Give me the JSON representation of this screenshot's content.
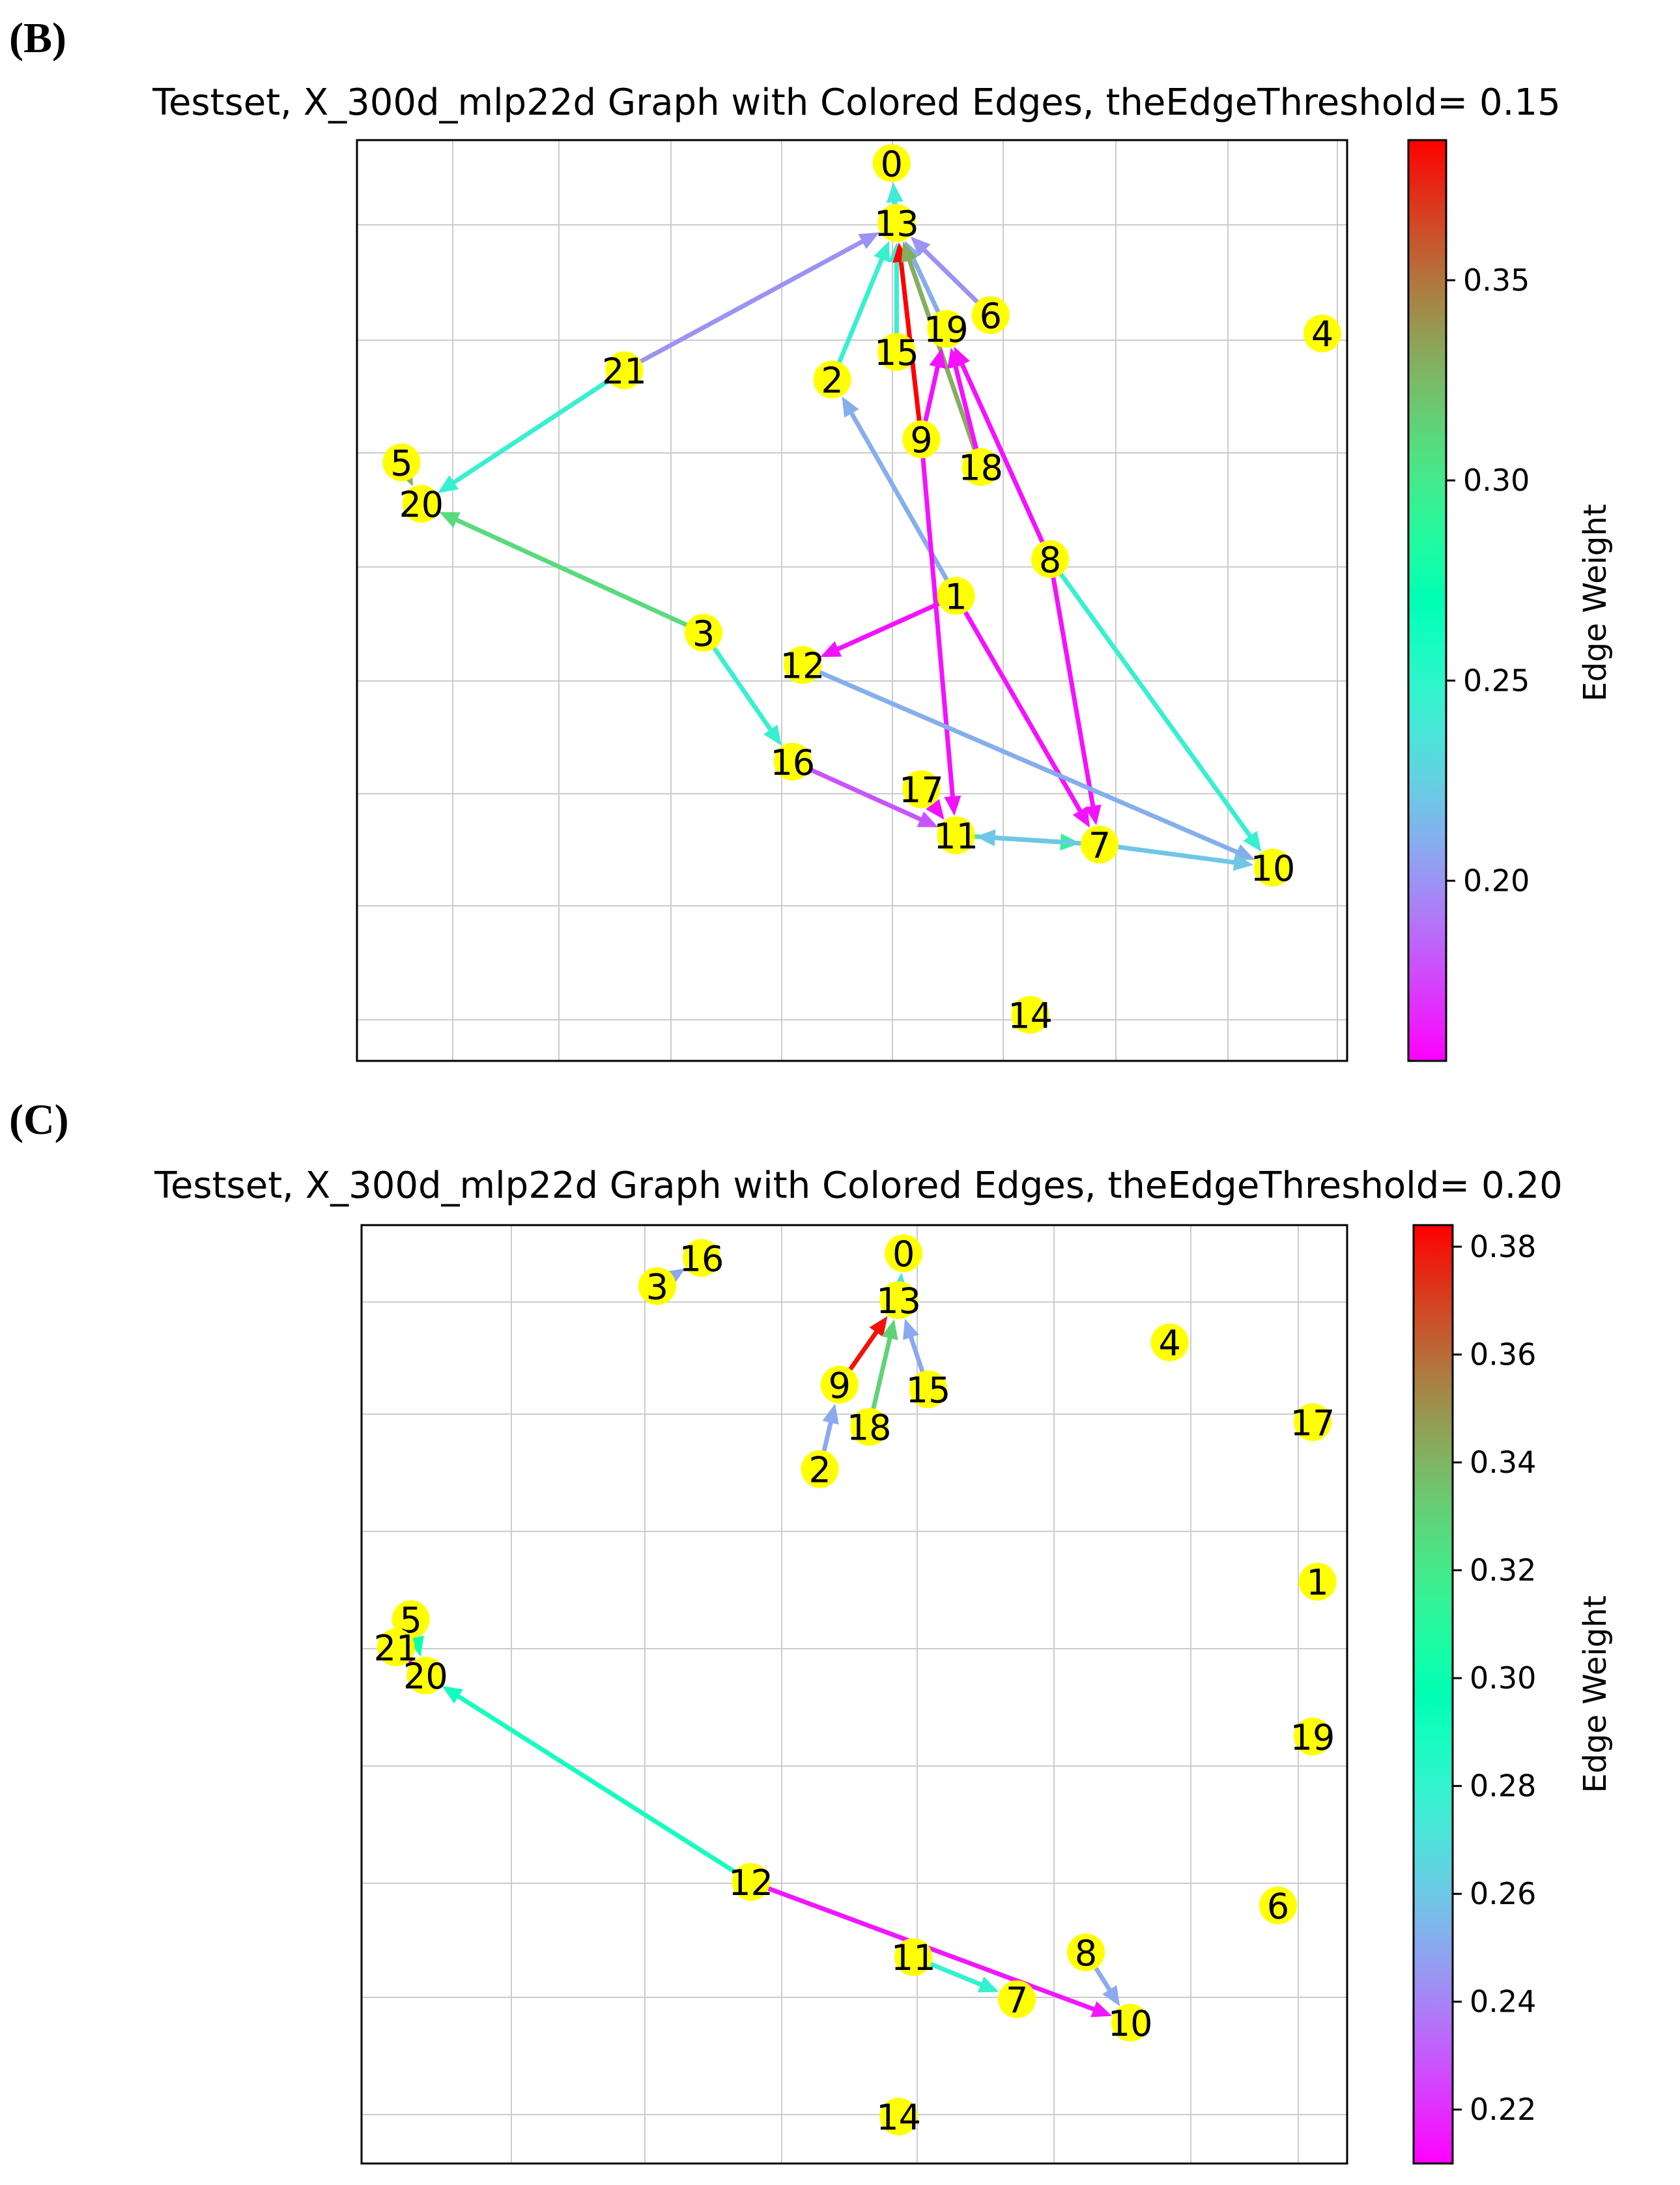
{
  "colors": {
    "node_fill": "#ffff00",
    "grid": "#cccccc",
    "axes": "#000000",
    "text": "#000000"
  },
  "chart_data": [
    {
      "type": "network-graph",
      "panel_label": "(B)",
      "title": "Testset, X_300d_mlp22d Graph with Colored Edges, theEdgeThreshold= 0.15",
      "colorbar": {
        "label": "Edge Weight",
        "range": [
          0.155,
          0.385
        ],
        "ticks": [
          "0.20",
          "0.25",
          "0.30",
          "0.35"
        ],
        "tick_values": [
          0.2,
          0.25,
          0.3,
          0.35
        ],
        "colormap": "rainbow"
      },
      "xlim": [
        0,
        10
      ],
      "ylim": [
        0,
        10
      ],
      "grid": true,
      "nodes": [
        {
          "id": "0",
          "x": 5.4,
          "y": 9.75
        },
        {
          "id": "13",
          "x": 5.45,
          "y": 9.1
        },
        {
          "id": "6",
          "x": 6.4,
          "y": 8.1
        },
        {
          "id": "19",
          "x": 5.95,
          "y": 7.95
        },
        {
          "id": "15",
          "x": 5.45,
          "y": 7.7
        },
        {
          "id": "21",
          "x": 2.7,
          "y": 7.5
        },
        {
          "id": "2",
          "x": 4.8,
          "y": 7.4
        },
        {
          "id": "4",
          "x": 9.75,
          "y": 7.9
        },
        {
          "id": "9",
          "x": 5.7,
          "y": 6.75
        },
        {
          "id": "18",
          "x": 6.3,
          "y": 6.45
        },
        {
          "id": "5",
          "x": 0.45,
          "y": 6.5
        },
        {
          "id": "20",
          "x": 0.65,
          "y": 6.05
        },
        {
          "id": "8",
          "x": 7.0,
          "y": 5.45
        },
        {
          "id": "1",
          "x": 6.05,
          "y": 5.05
        },
        {
          "id": "3",
          "x": 3.5,
          "y": 4.65
        },
        {
          "id": "12",
          "x": 4.5,
          "y": 4.3
        },
        {
          "id": "16",
          "x": 4.4,
          "y": 3.25
        },
        {
          "id": "17",
          "x": 5.7,
          "y": 2.95
        },
        {
          "id": "11",
          "x": 6.05,
          "y": 2.45
        },
        {
          "id": "7",
          "x": 7.5,
          "y": 2.35
        },
        {
          "id": "10",
          "x": 9.25,
          "y": 2.1
        },
        {
          "id": "14",
          "x": 6.8,
          "y": 0.5
        }
      ],
      "edges": [
        {
          "source": "13",
          "target": "0",
          "weight": 0.24
        },
        {
          "source": "21",
          "target": "13",
          "weight": 0.2
        },
        {
          "source": "21",
          "target": "20",
          "weight": 0.245
        },
        {
          "source": "2",
          "target": "13",
          "weight": 0.245
        },
        {
          "source": "15",
          "target": "13",
          "weight": 0.245
        },
        {
          "source": "6",
          "target": "13",
          "weight": 0.2
        },
        {
          "source": "19",
          "target": "13",
          "weight": 0.21
        },
        {
          "source": "9",
          "target": "13",
          "weight": 0.385
        },
        {
          "source": "18",
          "target": "13",
          "weight": 0.33
        },
        {
          "source": "18",
          "target": "19",
          "weight": 0.16
        },
        {
          "source": "8",
          "target": "19",
          "weight": 0.16
        },
        {
          "source": "1",
          "target": "2",
          "weight": 0.21
        },
        {
          "source": "1",
          "target": "12",
          "weight": 0.16
        },
        {
          "source": "1",
          "target": "7",
          "weight": 0.16
        },
        {
          "source": "8",
          "target": "7",
          "weight": 0.16
        },
        {
          "source": "8",
          "target": "10",
          "weight": 0.245
        },
        {
          "source": "9",
          "target": "11",
          "weight": 0.16
        },
        {
          "source": "9",
          "target": "19",
          "weight": 0.16
        },
        {
          "source": "3",
          "target": "20",
          "weight": 0.31
        },
        {
          "source": "3",
          "target": "16",
          "weight": 0.245
        },
        {
          "source": "12",
          "target": "10",
          "weight": 0.21
        },
        {
          "source": "16",
          "target": "11",
          "weight": 0.18
        },
        {
          "source": "17",
          "target": "11",
          "weight": 0.16
        },
        {
          "source": "11",
          "target": "7",
          "weight": 0.29
        },
        {
          "source": "7",
          "target": "11",
          "weight": 0.22
        },
        {
          "source": "7",
          "target": "10",
          "weight": 0.22
        },
        {
          "source": "5",
          "target": "20",
          "weight": 0.33
        }
      ]
    },
    {
      "type": "network-graph",
      "panel_label": "(C)",
      "title": "Testset, X_300d_mlp22d Graph with Colored Edges, theEdgeThreshold= 0.20",
      "colorbar": {
        "label": "Edge Weight",
        "range": [
          0.21,
          0.384
        ],
        "ticks": [
          "0.22",
          "0.24",
          "0.26",
          "0.28",
          "0.30",
          "0.32",
          "0.34",
          "0.36",
          "0.38"
        ],
        "tick_values": [
          0.22,
          0.24,
          0.26,
          0.28,
          0.3,
          0.32,
          0.34,
          0.36,
          0.38
        ],
        "colormap": "rainbow"
      },
      "xlim": [
        0,
        10
      ],
      "ylim": [
        0,
        10
      ],
      "grid": true,
      "nodes": [
        {
          "id": "16",
          "x": 3.45,
          "y": 9.65
        },
        {
          "id": "0",
          "x": 5.5,
          "y": 9.7
        },
        {
          "id": "3",
          "x": 3.0,
          "y": 9.35
        },
        {
          "id": "13",
          "x": 5.45,
          "y": 9.2
        },
        {
          "id": "4",
          "x": 8.2,
          "y": 8.75
        },
        {
          "id": "9",
          "x": 4.85,
          "y": 8.3
        },
        {
          "id": "15",
          "x": 5.75,
          "y": 8.25
        },
        {
          "id": "18",
          "x": 5.15,
          "y": 7.85
        },
        {
          "id": "17",
          "x": 9.65,
          "y": 7.9
        },
        {
          "id": "2",
          "x": 4.65,
          "y": 7.4
        },
        {
          "id": "1",
          "x": 9.7,
          "y": 6.2
        },
        {
          "id": "5",
          "x": 0.5,
          "y": 5.8
        },
        {
          "id": "21",
          "x": 0.35,
          "y": 5.5
        },
        {
          "id": "20",
          "x": 0.65,
          "y": 5.2
        },
        {
          "id": "19",
          "x": 9.65,
          "y": 4.55
        },
        {
          "id": "12",
          "x": 3.95,
          "y": 3.0
        },
        {
          "id": "6",
          "x": 9.3,
          "y": 2.75
        },
        {
          "id": "8",
          "x": 7.35,
          "y": 2.25
        },
        {
          "id": "11",
          "x": 5.6,
          "y": 2.2
        },
        {
          "id": "7",
          "x": 6.65,
          "y": 1.75
        },
        {
          "id": "10",
          "x": 7.8,
          "y": 1.5
        },
        {
          "id": "14",
          "x": 5.45,
          "y": 0.5
        }
      ],
      "edges": [
        {
          "source": "3",
          "target": "16",
          "weight": 0.25
        },
        {
          "source": "13",
          "target": "0",
          "weight": 0.27
        },
        {
          "source": "9",
          "target": "13",
          "weight": 0.38
        },
        {
          "source": "18",
          "target": "13",
          "weight": 0.33
        },
        {
          "source": "15",
          "target": "13",
          "weight": 0.25
        },
        {
          "source": "2",
          "target": "9",
          "weight": 0.25
        },
        {
          "source": "21",
          "target": "20",
          "weight": 0.215
        },
        {
          "source": "5",
          "target": "20",
          "weight": 0.3
        },
        {
          "source": "12",
          "target": "20",
          "weight": 0.29
        },
        {
          "source": "12",
          "target": "10",
          "weight": 0.215
        },
        {
          "source": "11",
          "target": "7",
          "weight": 0.28
        },
        {
          "source": "8",
          "target": "10",
          "weight": 0.25
        }
      ]
    }
  ]
}
